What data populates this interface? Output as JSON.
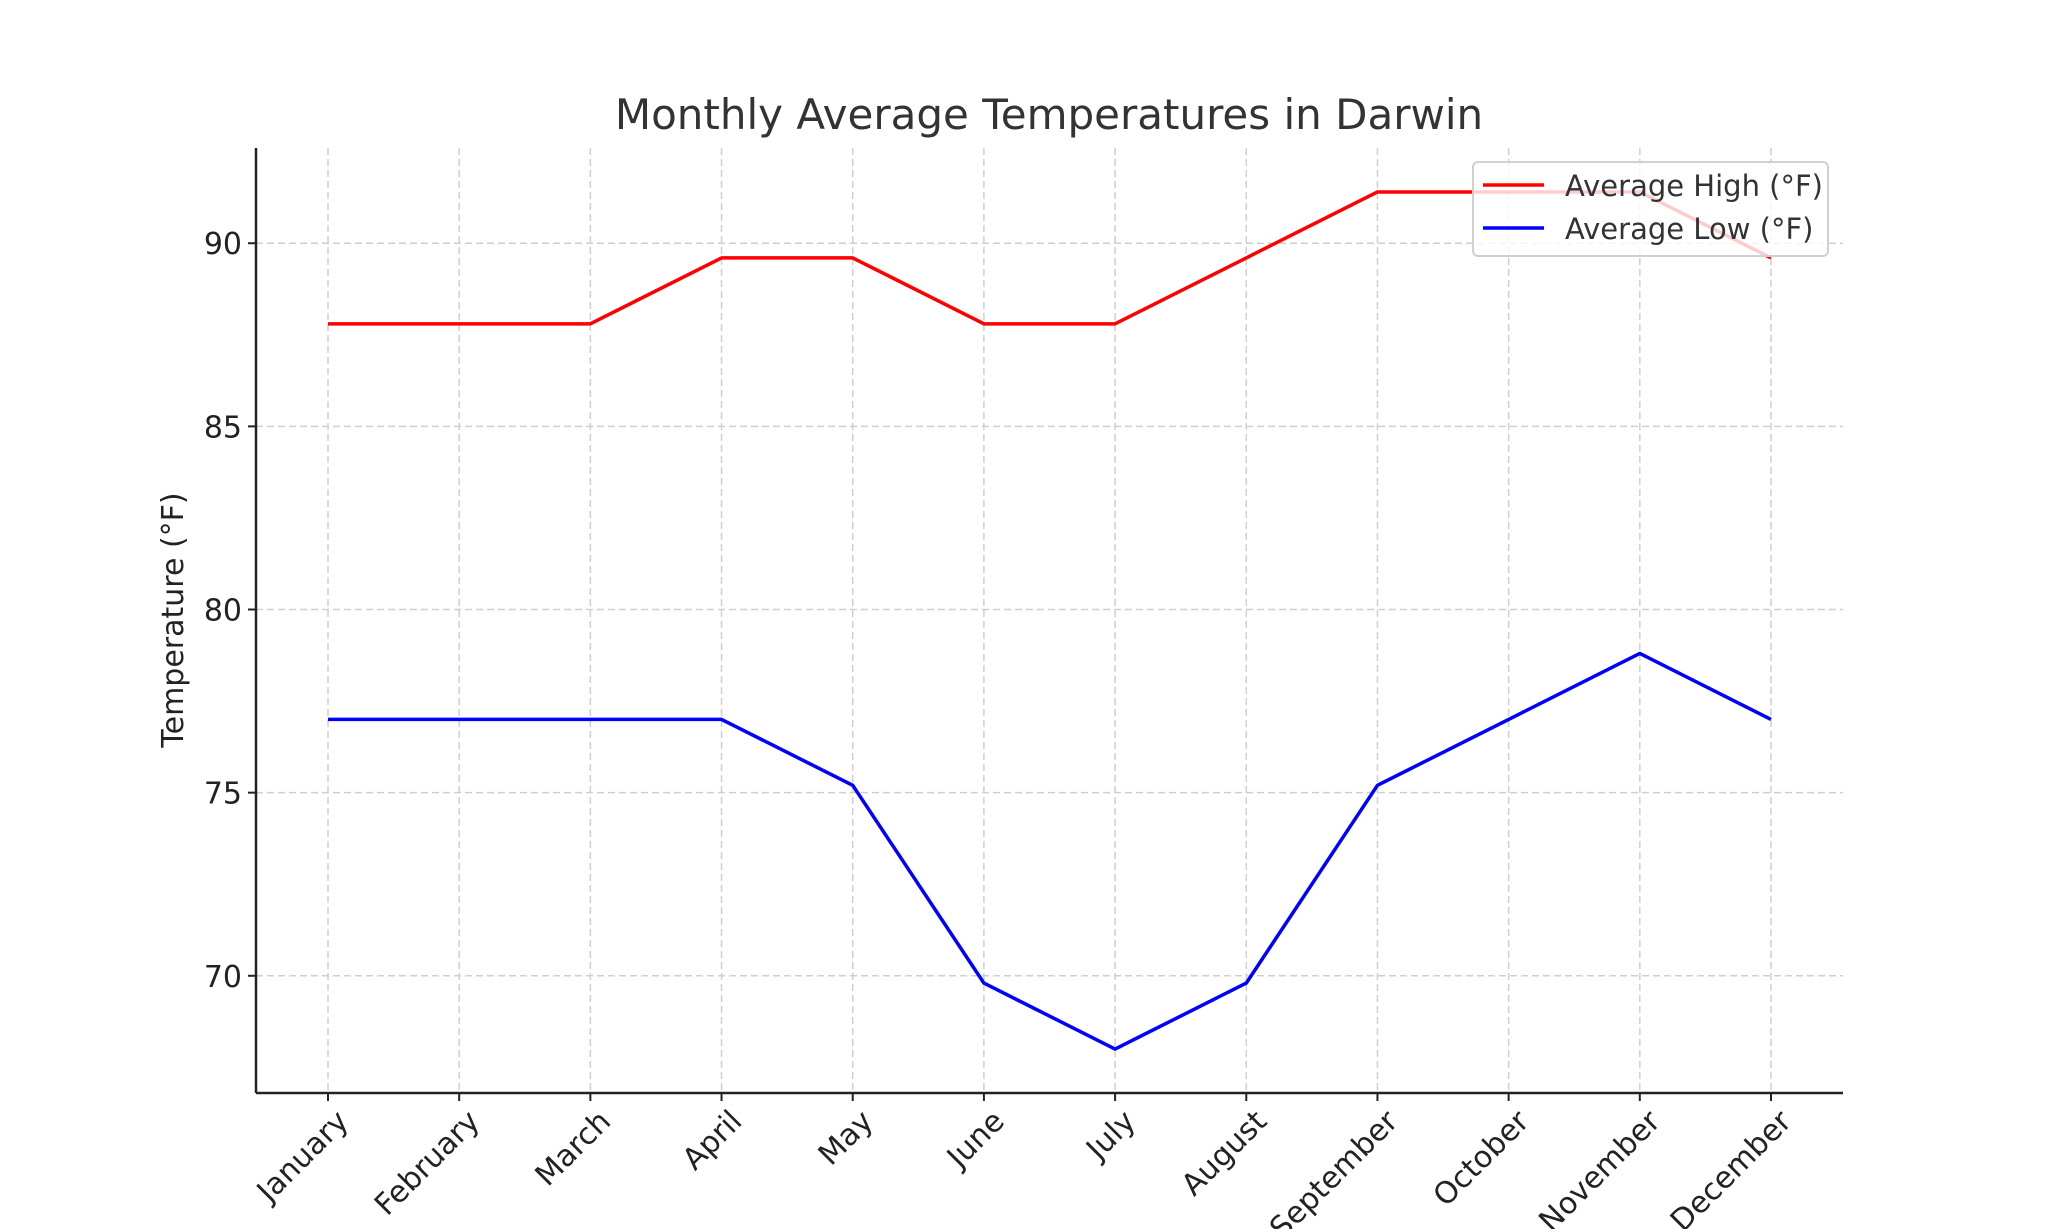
{
  "chart_data": {
    "type": "line",
    "title": "Monthly Average Temperatures in Darwin",
    "xlabel": "",
    "ylabel": "Temperature (°F)",
    "categories": [
      "January",
      "February",
      "March",
      "April",
      "May",
      "June",
      "July",
      "August",
      "September",
      "October",
      "November",
      "December"
    ],
    "series": [
      {
        "name": "Average High (°F)",
        "color": "#ff0000",
        "values": [
          87.8,
          87.8,
          87.8,
          89.6,
          89.6,
          87.8,
          87.8,
          89.6,
          91.4,
          91.4,
          91.4,
          89.6
        ]
      },
      {
        "name": "Average Low (°F)",
        "color": "#0000ff",
        "values": [
          77,
          77,
          77,
          77,
          75.2,
          69.8,
          68,
          69.8,
          75.2,
          77,
          78.8,
          77
        ]
      }
    ],
    "yticks": [
      70,
      75,
      80,
      85,
      90
    ],
    "ylim": [
      66.8,
      92.6
    ],
    "grid": true,
    "legend": "top-right"
  }
}
